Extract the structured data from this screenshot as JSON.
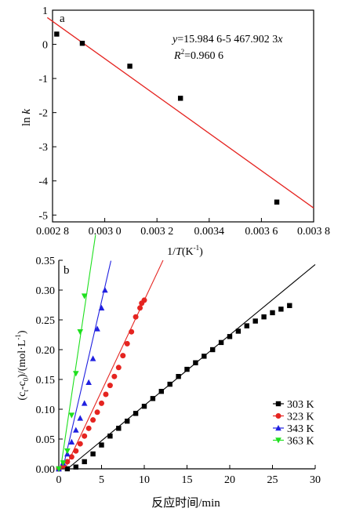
{
  "chart_data": [
    {
      "panel_label": "a",
      "type": "scatter",
      "xlabel_prefix": "1/",
      "xlabel_var": "T",
      "xlabel_unit": "(K",
      "xlabel_exp": "-1",
      "xlabel_close": ")",
      "ylabel": "ln k",
      "xlim": [
        0.0028,
        0.0038
      ],
      "ylim": [
        -5.2,
        1.0
      ],
      "x_ticks": [
        0.0028,
        0.003,
        0.0032,
        0.0034,
        0.0036,
        0.0038
      ],
      "x_tick_labels": [
        "0.002 8",
        "0.003 0",
        "0.003 2",
        "0.0034",
        "0.003 6",
        "0.003 8"
      ],
      "y_ticks": [
        1,
        0,
        -1,
        -2,
        -3,
        -4,
        -5
      ],
      "y_tick_labels": [
        "1",
        "0",
        "-1",
        "-2",
        "-3",
        "-4",
        "-5"
      ],
      "equation_lhs": "y",
      "equation_rhs": "=15.984 6-5 467.902 3",
      "equation_var": "x",
      "r2_label": "R",
      "r2_exp": "2",
      "r2_value": "=0.960 6",
      "points": [
        [
          0.002816,
          0.3
        ],
        [
          0.002914,
          0.03
        ],
        [
          0.003096,
          -0.64
        ],
        [
          0.00329,
          -1.58
        ],
        [
          0.003659,
          -4.62
        ]
      ],
      "fit": {
        "intercept": 15.9846,
        "slope": -5467.9023,
        "x_range": [
          0.00278,
          0.0038
        ]
      },
      "point_color": "#000000",
      "line_color": "#e52420"
    },
    {
      "panel_label": "b",
      "type": "scatter",
      "xlabel": "反应时间/min",
      "ylabel": "(ct-c0)/(mol·L-1)",
      "xlim": [
        0,
        30
      ],
      "ylim": [
        0,
        0.35
      ],
      "x_ticks": [
        0,
        5,
        10,
        15,
        20,
        25,
        30
      ],
      "x_tick_labels": [
        "0",
        "5",
        "10",
        "15",
        "20",
        "25",
        "30"
      ],
      "y_ticks": [
        0,
        0.05,
        0.1,
        0.15,
        0.2,
        0.25,
        0.3,
        0.35
      ],
      "y_tick_labels": [
        "0.00",
        "0.05",
        "0.10",
        "0.15",
        "0.20",
        "0.25",
        "0.30",
        "0.35"
      ],
      "legend_position": "bottom-right",
      "series": [
        {
          "name": "303 K",
          "marker": "square",
          "color": "#000000",
          "x": [
            0,
            1,
            2,
            3,
            4,
            5,
            6,
            7,
            8,
            9,
            10,
            11,
            12,
            13,
            14,
            15,
            16,
            17,
            18,
            19,
            20,
            21,
            22,
            23,
            24,
            25,
            26,
            27
          ],
          "y": [
            0.0,
            0.0,
            0.003,
            0.012,
            0.025,
            0.04,
            0.055,
            0.068,
            0.08,
            0.093,
            0.105,
            0.118,
            0.13,
            0.142,
            0.155,
            0.167,
            0.178,
            0.189,
            0.2,
            0.212,
            0.222,
            0.231,
            0.24,
            0.248,
            0.255,
            0.262,
            0.268,
            0.274
          ],
          "fit_slope": 0.01183,
          "fit_intercept": -0.012,
          "fit_x_range": [
            1.0,
            30.0
          ]
        },
        {
          "name": "323 K",
          "marker": "circle",
          "color": "#e52420",
          "x": [
            0,
            0.5,
            1,
            1.5,
            2,
            2.5,
            3,
            3.5,
            4,
            4.5,
            5,
            5.5,
            6,
            6.5,
            7,
            7.5,
            8,
            8.5,
            9,
            9.5
          ],
          "y": [
            0.0,
            0.005,
            0.012,
            0.02,
            0.03,
            0.042,
            0.055,
            0.068,
            0.082,
            0.095,
            0.11,
            0.125,
            0.14,
            0.155,
            0.17,
            0.19,
            0.21,
            0.23,
            0.255,
            0.27
          ],
          "extra_x": [
            10.0,
            9.7
          ],
          "extra_y": [
            0.283,
            0.278
          ],
          "fit_slope": 0.0305,
          "fit_intercept": -0.022,
          "fit_x_range": [
            0.7,
            12.2
          ]
        },
        {
          "name": "343 K",
          "marker": "triangle-up",
          "color": "#2020e0",
          "x": [
            0,
            0.5,
            1,
            1.5,
            2,
            2.5,
            3,
            3.5,
            4,
            4.5
          ],
          "y": [
            0.0,
            0.01,
            0.025,
            0.045,
            0.065,
            0.085,
            0.11,
            0.145,
            0.185,
            0.235
          ],
          "extra_x": [
            5.0,
            5.4
          ],
          "extra_y": [
            0.27,
            0.3
          ],
          "fit_slope": 0.062,
          "fit_intercept": -0.029,
          "fit_x_range": [
            0.47,
            6.1
          ]
        },
        {
          "name": "363 K",
          "marker": "triangle-down",
          "color": "#1ee01e",
          "x": [
            0,
            0.5,
            1,
            1.5,
            2,
            2.5,
            3
          ],
          "y": [
            0.0,
            0.01,
            0.03,
            0.09,
            0.16,
            0.23,
            0.29
          ],
          "fit_slope": 0.096,
          "fit_intercept": -0.02,
          "fit_x_range": [
            0.21,
            4.3
          ]
        }
      ]
    }
  ]
}
